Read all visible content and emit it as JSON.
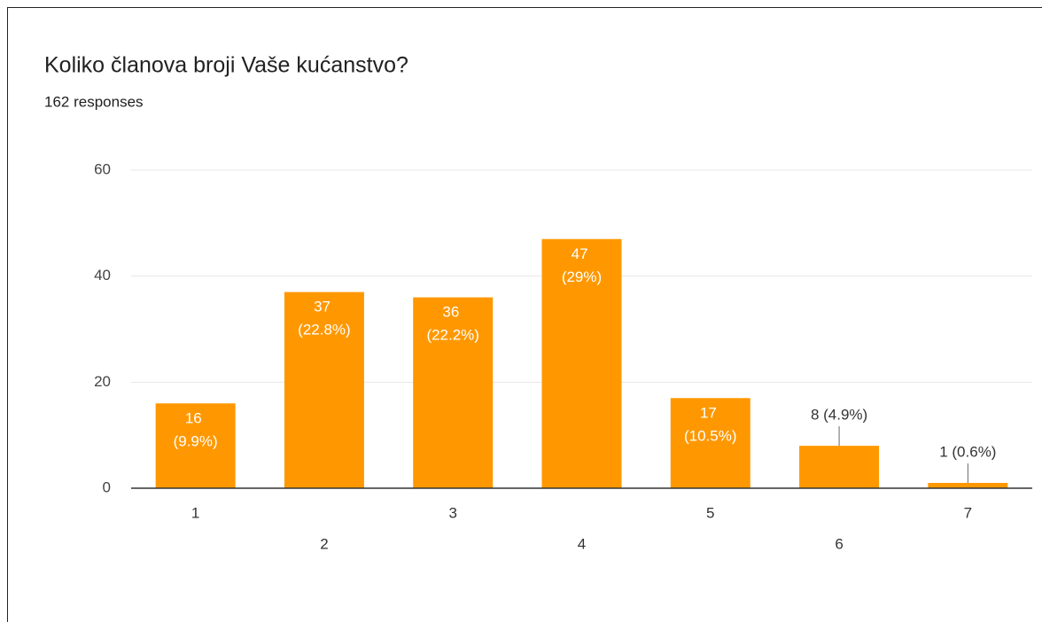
{
  "chart_data": {
    "type": "bar",
    "title": "Koliko članova broji Vaše kućanstvo?",
    "subtitle": "162 responses",
    "categories": [
      "1",
      "2",
      "3",
      "4",
      "5",
      "6",
      "7"
    ],
    "values": [
      16,
      37,
      36,
      47,
      17,
      8,
      1
    ],
    "value_labels": [
      "16 (9.9%)",
      "37 (22.8%)",
      "36 (22.2%)",
      "47 (29%)",
      "17 (10.5%)",
      "8 (4.9%)",
      "1 (0.6%)"
    ],
    "color": "#ff9800",
    "ylim": [
      0,
      60
    ],
    "yticks": [
      0,
      20,
      40,
      60
    ],
    "grid": true
  }
}
